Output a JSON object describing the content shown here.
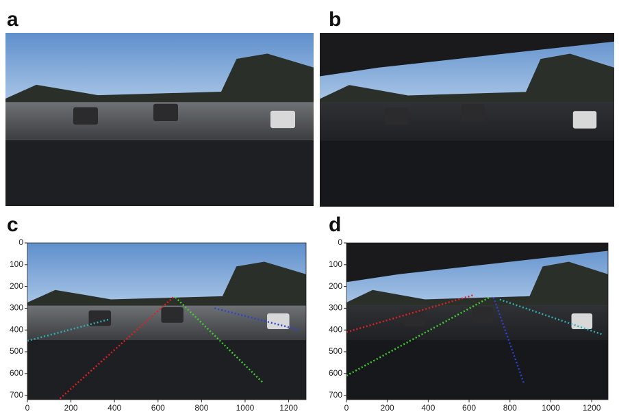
{
  "panels": [
    {
      "label": "a"
    },
    {
      "label": "b"
    },
    {
      "label": "c",
      "xlim": [
        0,
        1280
      ],
      "ylim": [
        720,
        0
      ],
      "xticks": [
        0,
        200,
        400,
        600,
        800,
        1000,
        1200
      ],
      "yticks": [
        0,
        100,
        200,
        300,
        400,
        500,
        600,
        700
      ]
    },
    {
      "label": "d",
      "xlim": [
        0,
        1280
      ],
      "ylim": [
        720,
        0
      ],
      "xticks": [
        0,
        200,
        400,
        600,
        800,
        1000,
        1200
      ],
      "yticks": [
        0,
        100,
        200,
        300,
        400,
        500,
        600,
        700
      ]
    }
  ]
}
